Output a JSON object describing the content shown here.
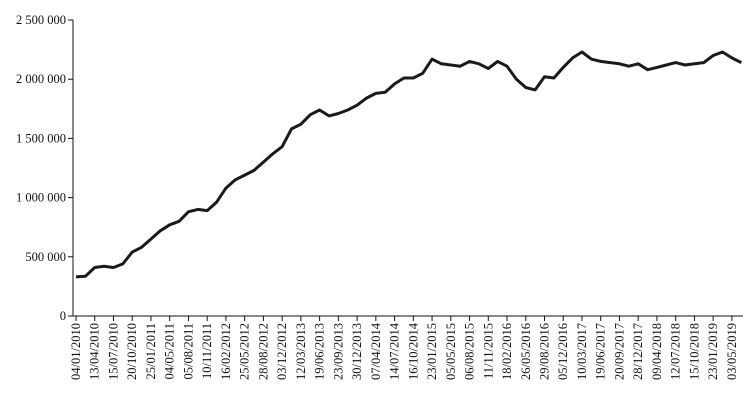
{
  "chart_data": {
    "type": "line",
    "categories": [
      "04/01/2010",
      null,
      "13/04/2010",
      null,
      "15/07/2010",
      null,
      "20/10/2010",
      null,
      "25/01/2011",
      null,
      "04/05/2011",
      null,
      "05/08/2011",
      null,
      "10/11/2011",
      null,
      "16/02/2012",
      null,
      "25/05/2012",
      null,
      "28/08/2012",
      null,
      "03/12/2012",
      null,
      "12/03/2013",
      null,
      "19/06/2013",
      null,
      "23/09/2013",
      null,
      "30/12/2013",
      null,
      "07/04/2014",
      null,
      "14/07/2014",
      null,
      "16/10/2014",
      null,
      "23/01/2015",
      null,
      "05/05/2015",
      null,
      "06/08/2015",
      null,
      "11/11/2015",
      null,
      "18/02/2016",
      null,
      "26/05/2016",
      null,
      "29/08/2016",
      null,
      "05/12/2016",
      null,
      "10/03/2017",
      null,
      "19/06/2017",
      null,
      "20/09/2017",
      null,
      "28/12/2017",
      null,
      "09/04/2018",
      null,
      "12/07/2018",
      null,
      "15/10/2018",
      null,
      "23/01/2019",
      null,
      "03/05/2019",
      null
    ],
    "values": [
      330000,
      335000,
      410000,
      420000,
      410000,
      440000,
      540000,
      580000,
      650000,
      720000,
      770000,
      800000,
      880000,
      900000,
      890000,
      960000,
      1080000,
      1150000,
      1190000,
      1230000,
      1300000,
      1370000,
      1430000,
      1580000,
      1620000,
      1700000,
      1740000,
      1690000,
      1710000,
      1740000,
      1780000,
      1840000,
      1880000,
      1890000,
      1960000,
      2010000,
      2010000,
      2050000,
      2170000,
      2130000,
      2120000,
      2110000,
      2150000,
      2130000,
      2090000,
      2150000,
      2110000,
      2000000,
      1930000,
      1910000,
      2020000,
      2010000,
      2100000,
      2180000,
      2230000,
      2170000,
      2150000,
      2140000,
      2130000,
      2110000,
      2130000,
      2080000,
      2100000,
      2120000,
      2140000,
      2120000,
      2130000,
      2140000,
      2200000,
      2230000,
      2180000,
      2140000
    ],
    "color": "#1a1a1a",
    "ylim": [
      0,
      2500000
    ],
    "yticks": [
      0,
      {
        "value": 500000,
        "label": "500 000"
      },
      {
        "value": 1000000,
        "label": "1 000 000"
      },
      {
        "value": 1500000,
        "label": "1 500 000"
      },
      {
        "value": 2000000,
        "label": "2 000 000"
      },
      {
        "value": 2500000,
        "label": "2 500 000"
      }
    ]
  }
}
